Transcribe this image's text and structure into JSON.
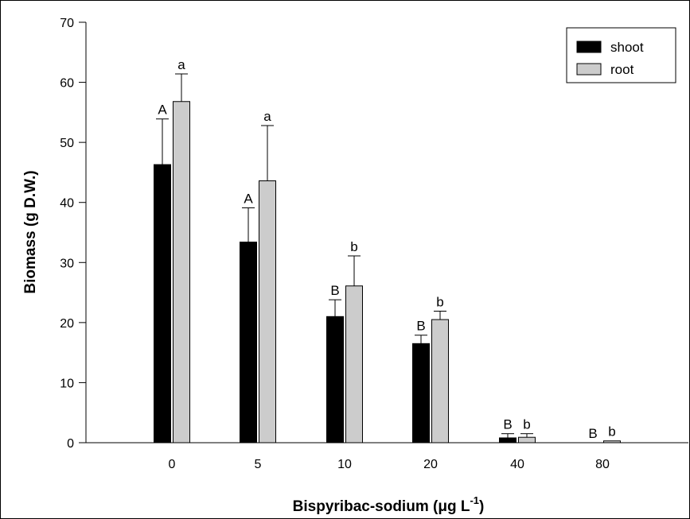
{
  "chart_data": {
    "type": "bar",
    "categories": [
      "0",
      "5",
      "10",
      "20",
      "40",
      "80"
    ],
    "series": [
      {
        "name": "shoot",
        "color": "#000000",
        "values": [
          46.3,
          33.4,
          21.0,
          16.5,
          0.8,
          0.0
        ],
        "errors": [
          7.6,
          5.7,
          2.8,
          1.4,
          0.7,
          0.0
        ],
        "letters": [
          "A",
          "A",
          "B",
          "B",
          "B",
          "B"
        ]
      },
      {
        "name": "root",
        "color": "#cccccc",
        "values": [
          56.8,
          43.6,
          26.1,
          20.5,
          0.9,
          0.3
        ],
        "errors": [
          4.6,
          9.2,
          5.0,
          1.4,
          0.6,
          0.0
        ],
        "letters": [
          "a",
          "a",
          "b",
          "b",
          "b",
          "b"
        ]
      }
    ],
    "xlabel_main": "Bispyribac-sodium (μg L",
    "xlabel_sup": "-1",
    "xlabel_close": ")",
    "ylabel": "Biomass (g D.W.)",
    "ylim": [
      0,
      70
    ],
    "yticks": [
      "0",
      "10",
      "20",
      "30",
      "40",
      "50",
      "60",
      "70"
    ],
    "grid": false,
    "legend_position": "top-right"
  }
}
